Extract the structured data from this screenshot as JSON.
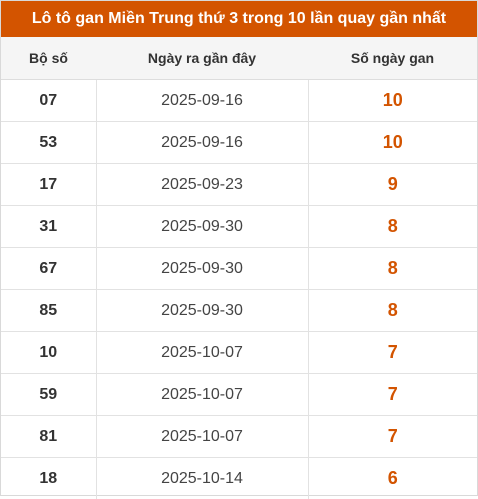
{
  "title": "Lô tô gan Miền Trung thứ 3 trong 10 lần quay gần nhất",
  "colors": {
    "header_bg": "#d35400",
    "gan_value": "#d35400"
  },
  "columns": [
    "Bộ số",
    "Ngày ra gần đây",
    "Số ngày gan"
  ],
  "rows": [
    {
      "number": "07",
      "date": "2025-09-16",
      "days": "10"
    },
    {
      "number": "53",
      "date": "2025-09-16",
      "days": "10"
    },
    {
      "number": "17",
      "date": "2025-09-23",
      "days": "9"
    },
    {
      "number": "31",
      "date": "2025-09-30",
      "days": "8"
    },
    {
      "number": "67",
      "date": "2025-09-30",
      "days": "8"
    },
    {
      "number": "85",
      "date": "2025-09-30",
      "days": "8"
    },
    {
      "number": "10",
      "date": "2025-10-07",
      "days": "7"
    },
    {
      "number": "59",
      "date": "2025-10-07",
      "days": "7"
    },
    {
      "number": "81",
      "date": "2025-10-07",
      "days": "7"
    },
    {
      "number": "18",
      "date": "2025-10-14",
      "days": "6"
    }
  ]
}
